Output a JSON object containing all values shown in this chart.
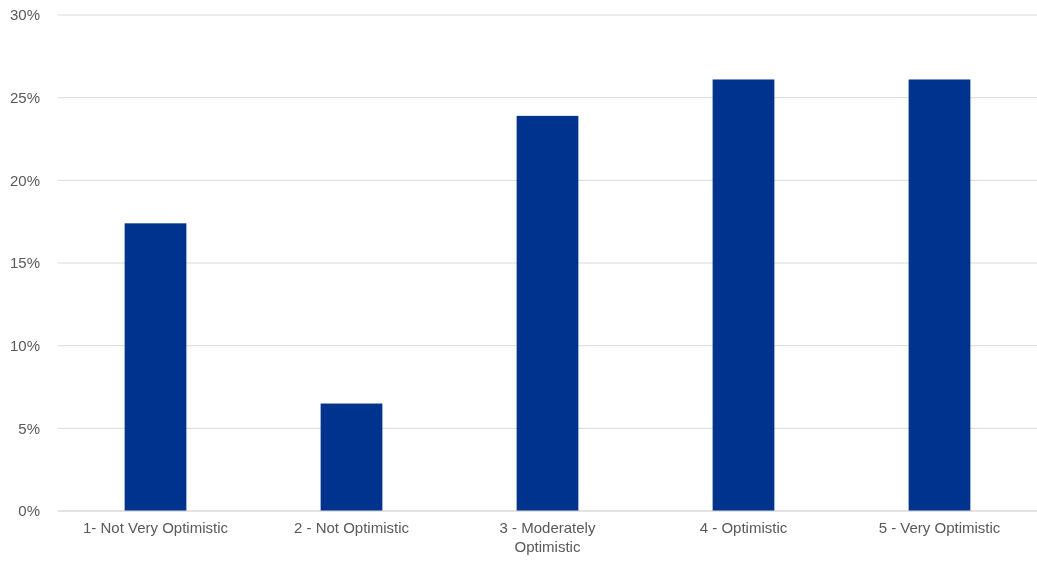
{
  "chart_data": {
    "type": "bar",
    "categories": [
      "1- Not Very Optimistic",
      "2 - Not Optimistic",
      "3 - Moderately Optimistic",
      "4 - Optimistic",
      "5 - Very Optimistic"
    ],
    "values": [
      17.4,
      6.5,
      23.9,
      26.1,
      26.1
    ],
    "color": "#00338d",
    "ylim": [
      0,
      30
    ],
    "yticks": [
      {
        "value": 0,
        "label": "0%"
      },
      {
        "value": 5,
        "label": "5%"
      },
      {
        "value": 10,
        "label": "10%"
      },
      {
        "value": 15,
        "label": "15%"
      },
      {
        "value": 20,
        "label": "20%"
      },
      {
        "value": 25,
        "label": "25%"
      },
      {
        "value": 30,
        "label": "30%"
      }
    ],
    "grid": "y"
  }
}
